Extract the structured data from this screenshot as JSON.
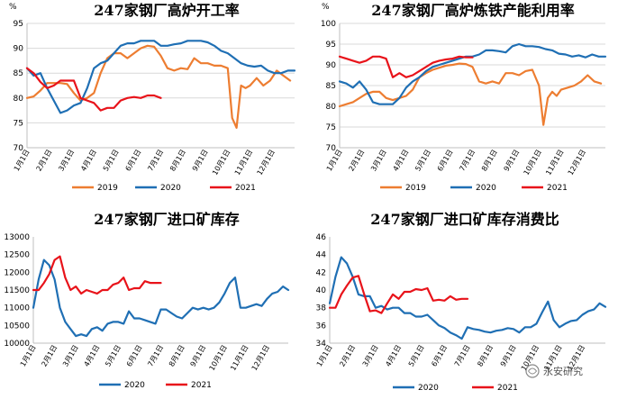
{
  "chart_data": [
    {
      "type": "line",
      "title": "247家钢厂高炉开工率",
      "unit": "%",
      "months": [
        "1月1日",
        "2月1日",
        "3月1日",
        "4月1日",
        "5月1日",
        "6月1日",
        "7月1日",
        "8月1日",
        "9月1日",
        "10月1日",
        "11月1日",
        "12月1日"
      ],
      "ylim": [
        70,
        95
      ],
      "yticks": [
        70,
        75,
        80,
        85,
        90,
        95
      ],
      "grid": true,
      "legend_position": "bottom",
      "series": [
        {
          "name": "2019",
          "color": "#ed7d31",
          "x": [
            0,
            0.3,
            0.6,
            0.9,
            1.2,
            1.5,
            1.8,
            2.1,
            2.4,
            2.7,
            3.0,
            3.3,
            3.6,
            3.9,
            4.2,
            4.5,
            4.8,
            5.1,
            5.4,
            5.7,
            6.0,
            6.3,
            6.6,
            6.9,
            7.2,
            7.5,
            7.8,
            8.1,
            8.4,
            8.7,
            9.0,
            9.2,
            9.4,
            9.6,
            9.8,
            10.0,
            10.3,
            10.6,
            10.9,
            11.2,
            11.5,
            11.8
          ],
          "values": [
            80,
            80.3,
            81.5,
            83,
            83,
            83,
            82.8,
            81,
            79.5,
            80,
            81,
            85,
            88,
            89,
            89,
            88,
            89,
            90,
            90.5,
            90.3,
            88.5,
            86,
            85.5,
            86,
            85.8,
            88,
            87,
            87,
            86.5,
            86.5,
            86,
            76,
            74,
            82.5,
            82,
            82.5,
            84,
            82.5,
            83.5,
            85.5,
            84.5,
            83.5
          ]
        },
        {
          "name": "2020",
          "color": "#1f6fb4",
          "x": [
            0,
            0.3,
            0.6,
            0.9,
            1.2,
            1.5,
            1.8,
            2.1,
            2.4,
            2.7,
            3.0,
            3.3,
            3.6,
            3.9,
            4.2,
            4.5,
            4.8,
            5.1,
            5.4,
            5.7,
            6.0,
            6.3,
            6.6,
            6.9,
            7.2,
            7.5,
            7.8,
            8.1,
            8.4,
            8.7,
            9.0,
            9.3,
            9.6,
            9.9,
            10.2,
            10.5,
            10.8,
            11.1,
            11.4,
            11.7,
            12.0
          ],
          "values": [
            86,
            84.5,
            85,
            82,
            79.5,
            77,
            77.5,
            78.5,
            79,
            82,
            86,
            87,
            87.5,
            89,
            90.5,
            91,
            91,
            91.5,
            91.5,
            91.5,
            90.5,
            90.5,
            90.8,
            91,
            91.5,
            91.5,
            91.5,
            91.2,
            90.5,
            89.5,
            89,
            88,
            87,
            86.5,
            86.3,
            86.5,
            85.5,
            85,
            85,
            85.5,
            85.5
          ]
        },
        {
          "name": "2021",
          "color": "#e8131a",
          "x": [
            0,
            0.3,
            0.6,
            0.9,
            1.2,
            1.5,
            1.8,
            2.1,
            2.4,
            2.7,
            3.0,
            3.3,
            3.6,
            3.9,
            4.2,
            4.5,
            4.8,
            5.1,
            5.4,
            5.7,
            6.0
          ],
          "values": [
            86,
            85,
            83.2,
            82,
            82.5,
            83.5,
            83.5,
            83.5,
            80,
            79.5,
            79,
            77.5,
            78,
            78,
            79.5,
            80,
            80.2,
            80,
            80.5,
            80.5,
            80
          ]
        }
      ]
    },
    {
      "type": "line",
      "title": "247家钢厂高炉炼铁产能利用率",
      "unit": "%",
      "months": [
        "1月1日",
        "2月1日",
        "3月1日",
        "4月1日",
        "5月1日",
        "6月1日",
        "7月1日",
        "8月1日",
        "9月1日",
        "10月1日",
        "11月1日",
        "12月1日"
      ],
      "ylim": [
        70,
        100
      ],
      "yticks": [
        70,
        75,
        80,
        85,
        90,
        95,
        100
      ],
      "grid": true,
      "legend_position": "bottom",
      "series": [
        {
          "name": "2019",
          "color": "#ed7d31",
          "x": [
            0,
            0.3,
            0.6,
            0.9,
            1.2,
            1.5,
            1.8,
            2.1,
            2.4,
            2.7,
            3.0,
            3.3,
            3.6,
            3.9,
            4.2,
            4.5,
            4.8,
            5.1,
            5.4,
            5.7,
            6.0,
            6.3,
            6.6,
            6.9,
            7.2,
            7.5,
            7.8,
            8.1,
            8.4,
            8.7,
            9.0,
            9.2,
            9.4,
            9.6,
            9.8,
            10.0,
            10.3,
            10.6,
            10.9,
            11.2,
            11.5,
            11.8
          ],
          "values": [
            80,
            80.5,
            81,
            82,
            83,
            83.5,
            83.5,
            82,
            81.5,
            82,
            82.5,
            84,
            87,
            88,
            88.8,
            89.3,
            89.8,
            90,
            90.3,
            90.2,
            89.5,
            86,
            85.5,
            86,
            85.5,
            88,
            88,
            87.5,
            88.5,
            88.8,
            85,
            75.5,
            82,
            83.5,
            82.5,
            84,
            84.5,
            85,
            86,
            87.5,
            86,
            85.5
          ]
        },
        {
          "name": "2020",
          "color": "#1f6fb4",
          "x": [
            0,
            0.3,
            0.6,
            0.9,
            1.2,
            1.5,
            1.8,
            2.1,
            2.4,
            2.7,
            3.0,
            3.3,
            3.6,
            3.9,
            4.2,
            4.5,
            4.8,
            5.1,
            5.4,
            5.7,
            6.0,
            6.3,
            6.6,
            6.9,
            7.2,
            7.5,
            7.8,
            8.1,
            8.4,
            8.7,
            9.0,
            9.3,
            9.6,
            9.9,
            10.2,
            10.5,
            10.8,
            11.1,
            11.4,
            11.7,
            12.0
          ],
          "values": [
            86,
            85.5,
            84.5,
            86,
            84,
            81,
            80.5,
            80.5,
            80.5,
            82,
            84.5,
            86,
            87,
            88.5,
            89.5,
            90,
            90.5,
            91,
            91.5,
            92,
            92,
            92.5,
            93.5,
            93.5,
            93.3,
            93,
            94.5,
            95,
            94.5,
            94.5,
            94.3,
            93.8,
            93.5,
            92.7,
            92.5,
            92,
            92.3,
            91.8,
            92.5,
            92,
            92
          ]
        },
        {
          "name": "2021",
          "color": "#e8131a",
          "x": [
            0,
            0.3,
            0.6,
            0.9,
            1.2,
            1.5,
            1.8,
            2.1,
            2.4,
            2.7,
            3.0,
            3.3,
            3.6,
            3.9,
            4.2,
            4.5,
            4.8,
            5.1,
            5.4,
            5.7,
            6.0
          ],
          "values": [
            92,
            91.5,
            91,
            90.5,
            91,
            92,
            92,
            91.5,
            87,
            88,
            87,
            87.5,
            88.5,
            89.5,
            90.5,
            91,
            91.3,
            91.5,
            92,
            91.8,
            91.8
          ]
        }
      ]
    },
    {
      "type": "line",
      "title": "247家钢厂进口矿库存",
      "months": [
        "1月1日",
        "2月1日",
        "3月1日",
        "4月1日",
        "5月1日",
        "6月1日",
        "7月1日",
        "8月1日",
        "9月1日",
        "10月1日",
        "11月1日",
        "12月1日"
      ],
      "ylim": [
        10000,
        13000
      ],
      "yticks": [
        10000,
        10500,
        11000,
        11500,
        12000,
        12500,
        13000
      ],
      "grid": false,
      "legend_position": "bottom",
      "series": [
        {
          "name": "2020",
          "color": "#1f6fb4",
          "x": [
            0,
            0.25,
            0.5,
            0.75,
            1.0,
            1.25,
            1.5,
            1.75,
            2.0,
            2.25,
            2.5,
            2.75,
            3.0,
            3.25,
            3.5,
            3.75,
            4.0,
            4.25,
            4.5,
            4.75,
            5.0,
            5.25,
            5.5,
            5.75,
            6.0,
            6.25,
            6.5,
            6.75,
            7.0,
            7.25,
            7.5,
            7.75,
            8.0,
            8.25,
            8.5,
            8.75,
            9.0,
            9.25,
            9.5,
            9.75,
            10.0,
            10.25,
            10.5,
            10.75,
            11.0,
            11.25,
            11.5,
            11.75,
            12.0
          ],
          "values": [
            11000,
            11800,
            12350,
            12200,
            11800,
            11000,
            10600,
            10400,
            10200,
            10250,
            10200,
            10400,
            10450,
            10350,
            10550,
            10600,
            10600,
            10550,
            10900,
            10700,
            10700,
            10650,
            10600,
            10550,
            10950,
            10950,
            10850,
            10750,
            10700,
            10850,
            11000,
            10950,
            11000,
            10950,
            11000,
            11150,
            11400,
            11700,
            11850,
            11000,
            11000,
            11050,
            11100,
            11050,
            11250,
            11400,
            11450,
            11600,
            11500
          ]
        },
        {
          "name": "2021",
          "color": "#e8131a",
          "x": [
            0,
            0.25,
            0.5,
            0.75,
            1.0,
            1.25,
            1.5,
            1.75,
            2.0,
            2.25,
            2.5,
            2.75,
            3.0,
            3.25,
            3.5,
            3.75,
            4.0,
            4.25,
            4.5,
            4.75,
            5.0,
            5.25,
            5.5,
            5.75,
            6.0
          ],
          "values": [
            11500,
            11500,
            11700,
            11950,
            12350,
            12450,
            11850,
            11500,
            11600,
            11400,
            11500,
            11450,
            11400,
            11500,
            11500,
            11650,
            11700,
            11850,
            11500,
            11550,
            11550,
            11750,
            11700,
            11700,
            11700
          ]
        }
      ]
    },
    {
      "type": "line",
      "title": "247家钢厂进口矿库存消费比",
      "months": [
        "1月1日",
        "2月1日",
        "3月1日",
        "4月1日",
        "5月1日",
        "6月1日",
        "7月1日",
        "8月1日",
        "9月1日",
        "10月1日",
        "11月1日",
        "12月1日"
      ],
      "ylim": [
        34,
        46
      ],
      "yticks": [
        34,
        36,
        38,
        40,
        42,
        44,
        46
      ],
      "grid": false,
      "legend_position": "bottom",
      "series": [
        {
          "name": "2020",
          "color": "#1f6fb4",
          "x": [
            0,
            0.25,
            0.5,
            0.75,
            1.0,
            1.25,
            1.5,
            1.75,
            2.0,
            2.25,
            2.5,
            2.75,
            3.0,
            3.25,
            3.5,
            3.75,
            4.0,
            4.25,
            4.5,
            4.75,
            5.0,
            5.25,
            5.5,
            5.75,
            6.0,
            6.25,
            6.5,
            6.75,
            7.0,
            7.25,
            7.5,
            7.75,
            8.0,
            8.25,
            8.5,
            8.75,
            9.0,
            9.25,
            9.5,
            9.75,
            10.0,
            10.25,
            10.5,
            10.75,
            11.0,
            11.25,
            11.5,
            11.75,
            12.0
          ],
          "values": [
            38.5,
            41.5,
            43.7,
            43,
            41.5,
            39.5,
            39.3,
            39.3,
            38,
            38.2,
            37.8,
            38,
            38,
            37.4,
            37.4,
            37,
            37,
            37.2,
            36.6,
            36,
            35.7,
            35.2,
            34.9,
            34.5,
            35.8,
            35.6,
            35.5,
            35.3,
            35.2,
            35.4,
            35.5,
            35.7,
            35.6,
            35.2,
            35.8,
            35.8,
            36.2,
            37.5,
            38.7,
            36.6,
            35.8,
            36.2,
            36.5,
            36.6,
            37.2,
            37.6,
            37.8,
            38.5,
            38.1
          ]
        },
        {
          "name": "2021",
          "color": "#e8131a",
          "x": [
            0,
            0.25,
            0.5,
            0.75,
            1.0,
            1.25,
            1.5,
            1.75,
            2.0,
            2.25,
            2.5,
            2.75,
            3.0,
            3.25,
            3.5,
            3.75,
            4.0,
            4.25,
            4.5,
            4.75,
            5.0,
            5.25,
            5.5,
            5.75,
            6.0
          ],
          "values": [
            38,
            38,
            39.5,
            40.5,
            41.4,
            41.6,
            39.5,
            37.6,
            37.7,
            37.4,
            38.5,
            39.5,
            39,
            39.8,
            39.8,
            40.1,
            40,
            40.2,
            38.8,
            38.9,
            38.8,
            39.3,
            38.9,
            39,
            39
          ]
        }
      ]
    }
  ],
  "watermark": "永安研究"
}
